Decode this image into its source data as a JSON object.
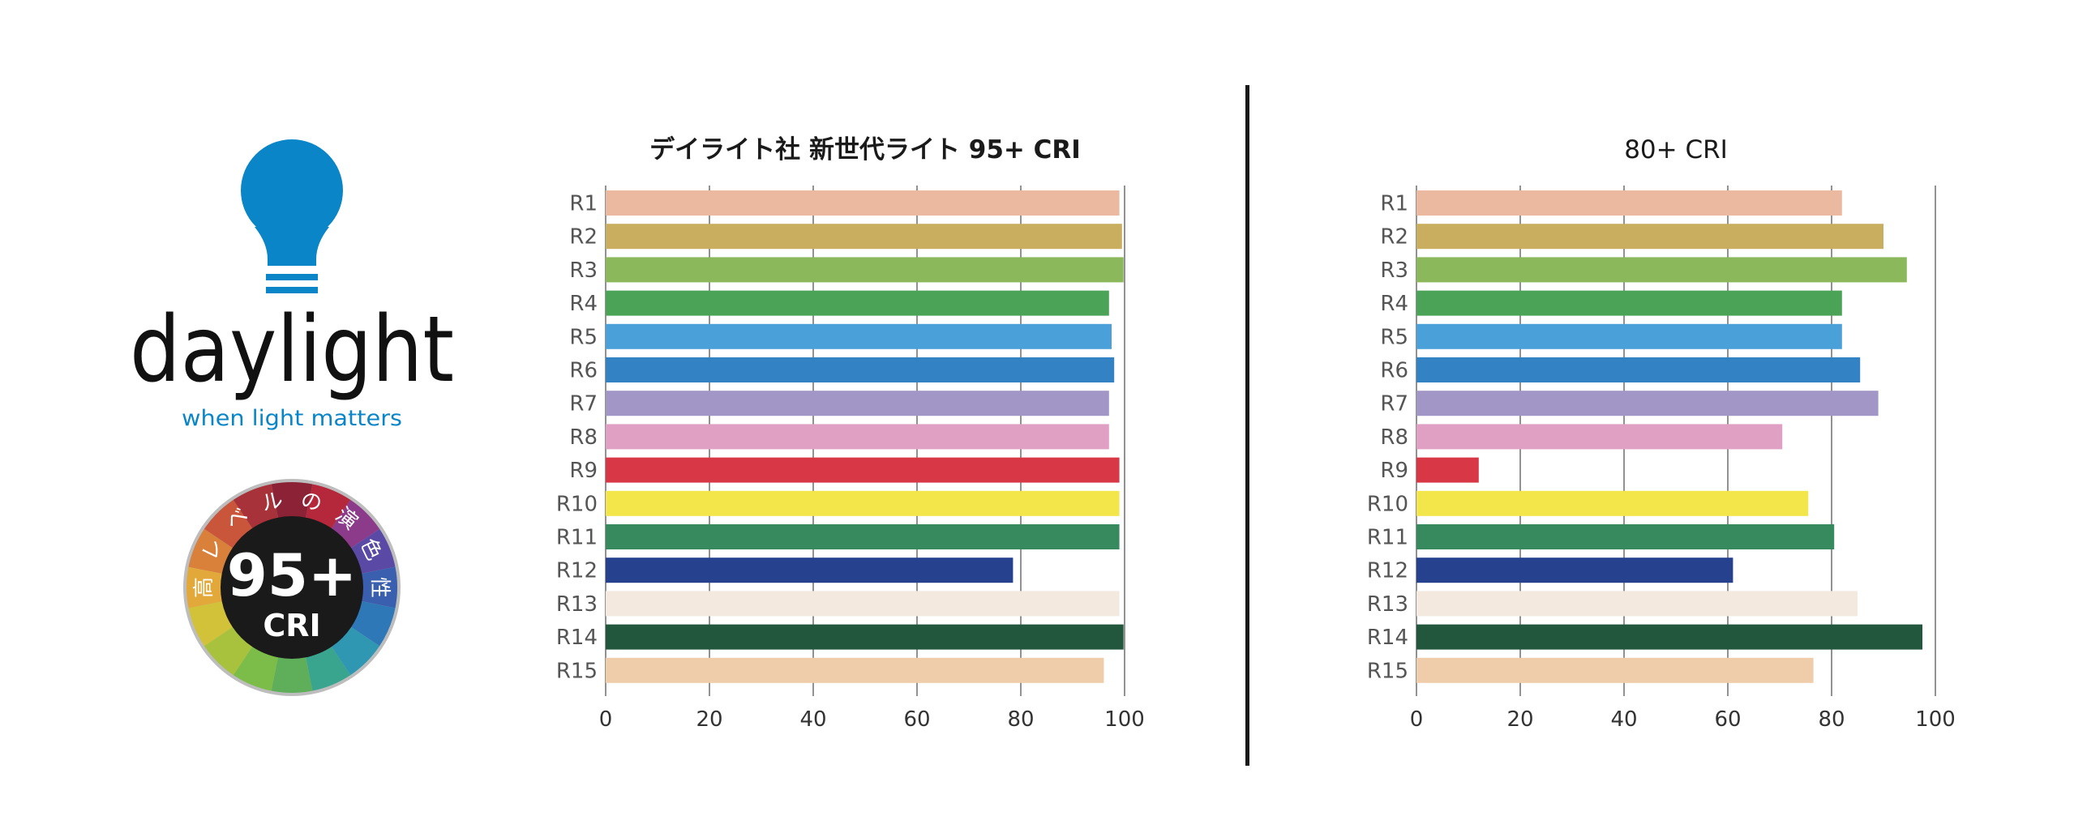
{
  "brand": {
    "name": "daylight",
    "tagline": "when light matters",
    "accent_color": "#0a86c8",
    "badge": {
      "big_text": "95+",
      "small_text": "CRI",
      "ring_text": [
        "高",
        "レ",
        "ベ",
        "ル",
        "の",
        "演",
        "色",
        "性"
      ]
    }
  },
  "chart_data": [
    {
      "type": "bar",
      "orientation": "horizontal",
      "title": "デイライト社 新世代ライト 95+ CRI",
      "categories": [
        "R1",
        "R2",
        "R3",
        "R4",
        "R5",
        "R6",
        "R7",
        "R8",
        "R9",
        "R10",
        "R11",
        "R12",
        "R13",
        "R14",
        "R15"
      ],
      "values": [
        99,
        99.5,
        99.8,
        97,
        97.5,
        98,
        97,
        97,
        99,
        99,
        99,
        78.5,
        99,
        99.8,
        96
      ],
      "colors": [
        "#ebb9a0",
        "#c8ae5e",
        "#8bb85a",
        "#4aa357",
        "#4aa0d8",
        "#3282c4",
        "#a196c6",
        "#e0a0c4",
        "#d83845",
        "#f2e64a",
        "#368a5e",
        "#26418e",
        "#f3e9df",
        "#22573e",
        "#f0cdaa"
      ],
      "xlim": [
        0,
        100
      ],
      "xticks": [
        "0",
        "20",
        "40",
        "60",
        "80",
        "100"
      ],
      "grid": true
    },
    {
      "type": "bar",
      "orientation": "horizontal",
      "title": "80+ CRI",
      "categories": [
        "R1",
        "R2",
        "R3",
        "R4",
        "R5",
        "R6",
        "R7",
        "R8",
        "R9",
        "R10",
        "R11",
        "R12",
        "R13",
        "R14",
        "R15"
      ],
      "values": [
        82,
        90,
        94.5,
        82,
        82,
        85.5,
        89,
        70.5,
        12,
        75.5,
        80.5,
        61,
        85,
        97.5,
        76.5
      ],
      "colors": [
        "#ebb9a0",
        "#c8ae5e",
        "#8bb85a",
        "#4aa357",
        "#4aa0d8",
        "#3282c4",
        "#a196c6",
        "#e0a0c4",
        "#d83845",
        "#f2e64a",
        "#368a5e",
        "#26418e",
        "#f3e9df",
        "#22573e",
        "#f0cdaa"
      ],
      "xlim": [
        0,
        100
      ],
      "xticks": [
        "0",
        "20",
        "40",
        "60",
        "80",
        "100"
      ],
      "grid": true
    }
  ]
}
